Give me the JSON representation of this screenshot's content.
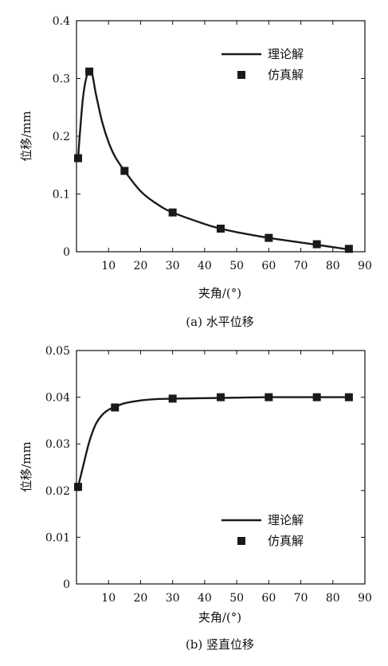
{
  "chart_data": [
    {
      "type": "line",
      "caption": "(a) 水平位移",
      "xlabel": "夹角/(°)",
      "ylabel": "位移/mm",
      "xlim": [
        0,
        90
      ],
      "ylim": [
        0,
        0.4
      ],
      "xticks": [
        10,
        20,
        30,
        40,
        50,
        60,
        70,
        80,
        90
      ],
      "xtick_labels": [
        "10",
        "20",
        "30",
        "40",
        "50",
        "60",
        "70",
        "80",
        "90"
      ],
      "yticks": [
        0,
        0.1,
        0.2,
        0.3,
        0.4
      ],
      "ytick_labels": [
        "0",
        "0.1",
        "0.2",
        "0.3",
        "0.4"
      ],
      "legend_position": "top-right",
      "grid": false,
      "series": [
        {
          "name": "理论解",
          "kind": "line",
          "color": "#1a1a1a",
          "x": [
            0.5,
            1,
            2,
            3,
            4,
            5,
            6,
            8,
            10,
            12,
            15,
            20,
            25,
            30,
            40,
            45,
            50,
            60,
            70,
            75,
            80,
            85
          ],
          "y": [
            0.16,
            0.2,
            0.265,
            0.3,
            0.312,
            0.305,
            0.275,
            0.225,
            0.19,
            0.165,
            0.14,
            0.105,
            0.083,
            0.068,
            0.048,
            0.04,
            0.034,
            0.024,
            0.016,
            0.012,
            0.008,
            0.004
          ]
        },
        {
          "name": "仿真解",
          "kind": "scatter",
          "marker": "square",
          "color": "#1a1a1a",
          "x": [
            0.5,
            4,
            15,
            30,
            45,
            60,
            75,
            85
          ],
          "y": [
            0.162,
            0.312,
            0.14,
            0.068,
            0.04,
            0.024,
            0.013,
            0.005
          ]
        }
      ]
    },
    {
      "type": "line",
      "caption": "(b) 竖直位移",
      "xlabel": "夹角/(°)",
      "ylabel": "位移/mm",
      "xlim": [
        0,
        90
      ],
      "ylim": [
        0,
        0.05
      ],
      "xticks": [
        10,
        20,
        30,
        40,
        50,
        60,
        70,
        80,
        90
      ],
      "xtick_labels": [
        "10",
        "20",
        "30",
        "40",
        "50",
        "60",
        "70",
        "80",
        "90"
      ],
      "yticks": [
        0,
        0.01,
        0.02,
        0.03,
        0.04,
        0.05
      ],
      "ytick_labels": [
        "0",
        "0.01",
        "0.02",
        "0.03",
        "0.04",
        "0.05"
      ],
      "legend_position": "bottom-right",
      "grid": false,
      "series": [
        {
          "name": "理论解",
          "kind": "line",
          "color": "#1a1a1a",
          "x": [
            0.5,
            2,
            4,
            6,
            8,
            10,
            12,
            15,
            20,
            25,
            30,
            40,
            50,
            60,
            70,
            80,
            85
          ],
          "y": [
            0.0208,
            0.025,
            0.0305,
            0.0342,
            0.0362,
            0.0373,
            0.0379,
            0.0387,
            0.0393,
            0.0396,
            0.0397,
            0.0398,
            0.0399,
            0.04,
            0.04,
            0.04,
            0.04
          ]
        },
        {
          "name": "仿真解",
          "kind": "scatter",
          "marker": "square",
          "color": "#1a1a1a",
          "x": [
            0.5,
            12,
            30,
            45,
            60,
            75,
            85
          ],
          "y": [
            0.0208,
            0.0378,
            0.0397,
            0.04,
            0.04,
            0.04,
            0.04
          ]
        }
      ]
    }
  ]
}
